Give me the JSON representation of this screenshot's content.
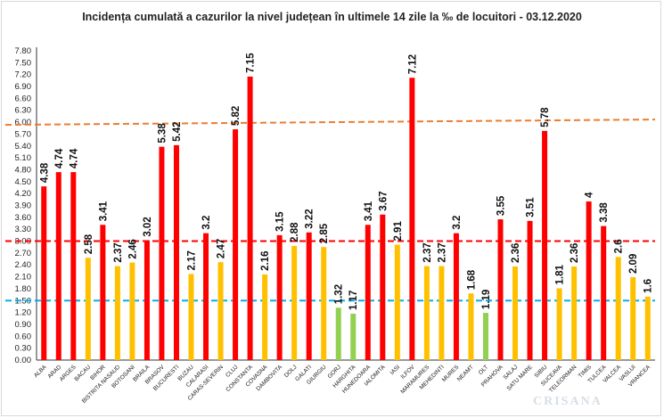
{
  "chart_data": {
    "type": "bar",
    "title": "Incidența cumulată a cazurilor la nivel județean în ultimele 14 zile la ‰ de locuitori - 03.12.2020",
    "xlabel": "",
    "ylabel": "",
    "ylim": [
      0,
      7.8
    ],
    "ytick_step": 0.3,
    "ytick_labels": [
      "0.00",
      "0.30",
      "0.60",
      "0.90",
      "1.20",
      "1.50",
      "1.80",
      "2.10",
      "2.40",
      "2.70",
      "3.00",
      "3.30",
      "3.60",
      "3.90",
      "4.20",
      "4.50",
      "4.80",
      "5.10",
      "5.40",
      "5.70",
      "6.00",
      "6.30",
      "6.60",
      "6.90",
      "7.20",
      "7.50",
      "7.80"
    ],
    "grid": false,
    "legend": "none",
    "categories": [
      "ALBA",
      "ARAD",
      "ARGES",
      "BACAU",
      "BIHOR",
      "BISTRITA NASAUD",
      "BOTOSANI",
      "BRAILA",
      "BRASOV",
      "BUCURESTI",
      "BUZAU",
      "CALARASI",
      "CARAS-SEVERIN",
      "CLUJ",
      "CONSTANTA",
      "COVASNA",
      "DAMBOVITA",
      "DOLJ",
      "GALATI",
      "GIURGIU",
      "GORJ",
      "HARGHITA",
      "HUNEDOARA",
      "IALOMITA",
      "IASI",
      "ILFOV",
      "MARAMURES",
      "MEHEDINTI",
      "MURES",
      "NEAMT",
      "OLT",
      "PRAHOVA",
      "SALAJ",
      "SATU MARE",
      "SIBIU",
      "SUCEAVA",
      "TELEORMAN",
      "TIMIS",
      "TULCEA",
      "VALCEA",
      "VASLUI",
      "VRANCEA"
    ],
    "values": [
      4.38,
      4.74,
      4.74,
      2.58,
      3.41,
      2.37,
      2.46,
      3.02,
      5.38,
      5.42,
      2.17,
      3.2,
      2.47,
      5.82,
      7.15,
      2.16,
      3.15,
      2.88,
      3.22,
      2.85,
      1.32,
      1.17,
      3.41,
      3.67,
      2.91,
      7.12,
      2.37,
      2.37,
      3.2,
      1.68,
      1.19,
      3.55,
      2.36,
      3.51,
      5.78,
      1.81,
      2.36,
      4,
      3.38,
      2.6,
      2.09,
      1.6
    ],
    "value_labels": [
      "4.38",
      "4.74",
      "4.74",
      "2.58",
      "3.41",
      "2.37",
      "2.46",
      "3.02",
      "5.38",
      "5.42",
      "2.17",
      "3.2",
      "2.47",
      "5.82",
      "7.15",
      "2.16",
      "3.15",
      "2.88",
      "3.22",
      "2.85",
      "1.32",
      "1.17",
      "3.41",
      "3.67",
      "2.91",
      "7.12",
      "2.37",
      "2.37",
      "3.2",
      "1.68",
      "1.19",
      "3.55",
      "2.36",
      "3.51",
      "5.78",
      "1.81",
      "2.36",
      "4",
      "3.38",
      "2.6",
      "2.09",
      "1.6"
    ],
    "thresholds": [
      {
        "value": 6.0,
        "color": "#ed7d31"
      },
      {
        "value": 3.0,
        "color": "#ff0000"
      },
      {
        "value": 1.5,
        "color": "#00b0f0"
      }
    ],
    "colors": {
      "above_3": "#ff0000",
      "between_1_5_and_3": "#ffc000",
      "below_1_5": "#92d050",
      "axis": "#333333"
    }
  },
  "watermark": "CRISANA"
}
